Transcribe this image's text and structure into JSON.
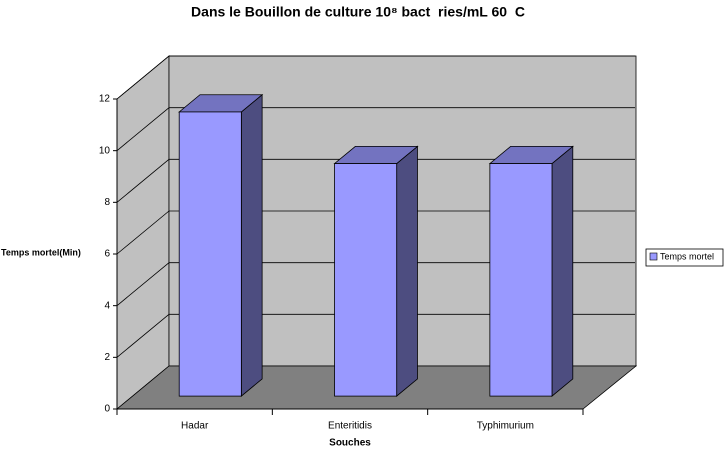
{
  "chart_data": {
    "type": "bar3d",
    "title": "Dans le Bouillon de culture 10⁸ bact  ries/mL 60  C",
    "x_label": "Souches",
    "y_label": "Temps mortel(Min)",
    "categories": [
      "Hadar",
      "Enteritidis",
      "Typhimurium"
    ],
    "series": [
      {
        "name": "Temps mortel",
        "color": "#9999ff",
        "values": [
          11,
          9,
          9
        ]
      }
    ],
    "ylim": [
      0,
      12
    ],
    "yticks": [
      0,
      2,
      4,
      6,
      8,
      10,
      12
    ],
    "grid": true,
    "legend": "right"
  }
}
